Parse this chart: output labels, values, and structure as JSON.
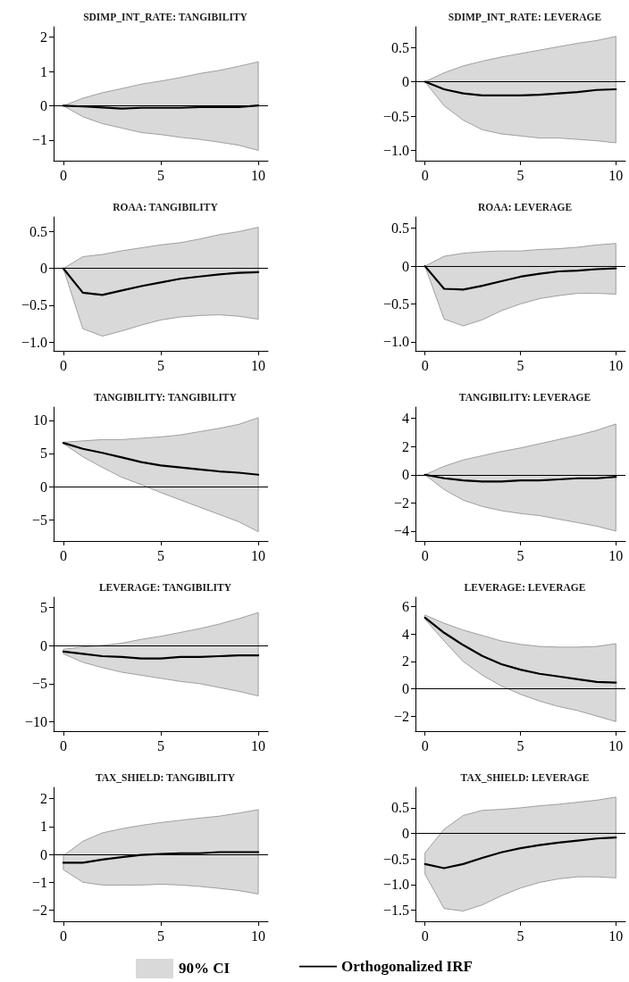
{
  "chart_data": [
    {
      "type": "line",
      "title": "SDIMP_INT_RATE: TANGIBILITY",
      "x": [
        0,
        1,
        2,
        3,
        4,
        5,
        6,
        7,
        8,
        9,
        10
      ],
      "xlim": [
        -0.5,
        10.5
      ],
      "xticks": [
        0,
        5,
        10
      ],
      "ylim": [
        -1.6,
        2.3
      ],
      "yticks": [
        {
          "value": -1,
          "label": "−1"
        },
        0,
        1,
        2
      ],
      "marker": "none",
      "ref_lines": [
        {
          "axis": "y",
          "value": 0,
          "color": "#000000"
        }
      ],
      "series": [
        {
          "color": "#000000",
          "values": [
            0,
            -0.02,
            -0.05,
            -0.08,
            -0.06,
            -0.06,
            -0.06,
            -0.04,
            -0.04,
            -0.04,
            0.01
          ],
          "lower": [
            0,
            -0.32,
            -0.52,
            -0.65,
            -0.78,
            -0.84,
            -0.92,
            -0.98,
            -1.06,
            -1.15,
            -1.3
          ],
          "upper": [
            0,
            0.22,
            0.38,
            0.5,
            0.63,
            0.72,
            0.82,
            0.94,
            1.03,
            1.15,
            1.28
          ]
        }
      ]
    },
    {
      "type": "line",
      "title": "SDIMP_INT_RATE: LEVERAGE",
      "x": [
        0,
        1,
        2,
        3,
        4,
        5,
        6,
        7,
        8,
        9,
        10
      ],
      "xlim": [
        -0.5,
        10.5
      ],
      "xticks": [
        0,
        5,
        10
      ],
      "ylim": [
        -1.15,
        0.8
      ],
      "yticks": [
        {
          "value": -1,
          "label": "−1.0"
        },
        {
          "value": -0.5,
          "label": "−0.5"
        },
        0,
        0.5
      ],
      "marker": "none",
      "ref_lines": [
        {
          "axis": "y",
          "value": 0,
          "color": "#000000"
        }
      ],
      "series": [
        {
          "color": "#000000",
          "values": [
            0,
            -0.11,
            -0.17,
            -0.2,
            -0.2,
            -0.2,
            -0.19,
            -0.17,
            -0.15,
            -0.12,
            -0.11
          ],
          "lower": [
            0,
            -0.35,
            -0.56,
            -0.7,
            -0.76,
            -0.79,
            -0.82,
            -0.82,
            -0.84,
            -0.86,
            -0.89
          ],
          "upper": [
            0,
            0.13,
            0.23,
            0.3,
            0.36,
            0.41,
            0.46,
            0.51,
            0.56,
            0.6,
            0.66
          ]
        }
      ]
    },
    {
      "type": "line",
      "title": "ROAA: TANGIBILITY",
      "x": [
        0,
        1,
        2,
        3,
        4,
        5,
        6,
        7,
        8,
        9,
        10
      ],
      "xlim": [
        -0.5,
        10.5
      ],
      "xticks": [
        0,
        5,
        10
      ],
      "ylim": [
        -1.12,
        0.7
      ],
      "yticks": [
        {
          "value": -1,
          "label": "−1.0"
        },
        {
          "value": -0.5,
          "label": "−0.5"
        },
        0,
        0.5
      ],
      "marker": "none",
      "ref_lines": [
        {
          "axis": "y",
          "value": 0,
          "color": "#000000"
        }
      ],
      "series": [
        {
          "color": "#000000",
          "values": [
            0,
            -0.33,
            -0.36,
            -0.3,
            -0.24,
            -0.19,
            -0.14,
            -0.11,
            -0.08,
            -0.06,
            -0.05
          ],
          "lower": [
            0,
            -0.82,
            -0.92,
            -0.85,
            -0.77,
            -0.7,
            -0.66,
            -0.64,
            -0.63,
            -0.65,
            -0.69
          ],
          "upper": [
            0,
            0.16,
            0.19,
            0.24,
            0.28,
            0.32,
            0.35,
            0.4,
            0.46,
            0.5,
            0.56
          ]
        }
      ]
    },
    {
      "type": "line",
      "title": "ROAA: LEVERAGE",
      "x": [
        0,
        1,
        2,
        3,
        4,
        5,
        6,
        7,
        8,
        9,
        10
      ],
      "xlim": [
        -0.5,
        10.5
      ],
      "xticks": [
        0,
        5,
        10
      ],
      "ylim": [
        -1.12,
        0.65
      ],
      "yticks": [
        {
          "value": -1,
          "label": "−1.0"
        },
        {
          "value": -0.5,
          "label": "−0.5"
        },
        0,
        0.5
      ],
      "marker": "none",
      "ref_lines": [
        {
          "axis": "y",
          "value": 0,
          "color": "#000000"
        }
      ],
      "series": [
        {
          "color": "#000000",
          "values": [
            0,
            -0.3,
            -0.31,
            -0.26,
            -0.2,
            -0.14,
            -0.1,
            -0.07,
            -0.06,
            -0.04,
            -0.03
          ],
          "lower": [
            0,
            -0.7,
            -0.79,
            -0.71,
            -0.59,
            -0.5,
            -0.43,
            -0.39,
            -0.36,
            -0.36,
            -0.37
          ],
          "upper": [
            0,
            0.13,
            0.17,
            0.19,
            0.2,
            0.2,
            0.22,
            0.23,
            0.25,
            0.28,
            0.3
          ]
        }
      ]
    },
    {
      "type": "line",
      "title": "TANGIBILITY: TANGIBILITY",
      "x": [
        0,
        1,
        2,
        3,
        4,
        5,
        6,
        7,
        8,
        9,
        10
      ],
      "xlim": [
        -0.5,
        10.5
      ],
      "xticks": [
        0,
        5,
        10
      ],
      "ylim": [
        -8.2,
        12
      ],
      "yticks": [
        {
          "value": -5,
          "label": "−5"
        },
        0,
        5,
        10
      ],
      "marker": "none",
      "ref_lines": [
        {
          "axis": "y",
          "value": 0,
          "color": "#000000"
        }
      ],
      "series": [
        {
          "color": "#000000",
          "values": [
            6.6,
            5.7,
            5.1,
            4.4,
            3.7,
            3.2,
            2.9,
            2.6,
            2.3,
            2.1,
            1.8
          ],
          "lower": [
            6.5,
            4.5,
            2.9,
            1.4,
            0.3,
            -0.9,
            -2,
            -3.1,
            -4.2,
            -5.3,
            -6.8
          ],
          "upper": [
            6.7,
            6.9,
            7.1,
            7.1,
            7.3,
            7.5,
            7.8,
            8.3,
            8.8,
            9.4,
            10.4
          ]
        }
      ]
    },
    {
      "type": "line",
      "title": "TANGIBILITY: LEVERAGE",
      "x": [
        0,
        1,
        2,
        3,
        4,
        5,
        6,
        7,
        8,
        9,
        10
      ],
      "xlim": [
        -0.5,
        10.5
      ],
      "xticks": [
        0,
        5,
        10
      ],
      "ylim": [
        -4.7,
        4.8
      ],
      "yticks": [
        {
          "value": -4,
          "label": "−4"
        },
        {
          "value": -2,
          "label": "−2"
        },
        0,
        2,
        4
      ],
      "marker": "none",
      "ref_lines": [
        {
          "axis": "y",
          "value": 0,
          "color": "#000000"
        }
      ],
      "series": [
        {
          "color": "#000000",
          "values": [
            0,
            -0.25,
            -0.4,
            -0.48,
            -0.48,
            -0.4,
            -0.4,
            -0.33,
            -0.25,
            -0.25,
            -0.15
          ],
          "lower": [
            0,
            -1.05,
            -1.8,
            -2.25,
            -2.55,
            -2.75,
            -2.9,
            -3.15,
            -3.4,
            -3.65,
            -4
          ],
          "upper": [
            0,
            0.6,
            1.05,
            1.35,
            1.65,
            1.9,
            2.2,
            2.5,
            2.8,
            3.15,
            3.6
          ]
        }
      ]
    },
    {
      "type": "line",
      "title": "LEVERAGE: TANGIBILITY",
      "x": [
        0,
        1,
        2,
        3,
        4,
        5,
        6,
        7,
        8,
        9,
        10
      ],
      "xlim": [
        -0.5,
        10.5
      ],
      "xticks": [
        0,
        5,
        10
      ],
      "ylim": [
        -11.2,
        6.3
      ],
      "yticks": [
        {
          "value": -10,
          "label": "−10"
        },
        {
          "value": -5,
          "label": "−5"
        },
        0,
        5
      ],
      "marker": "none",
      "ref_lines": [
        {
          "axis": "y",
          "value": 0,
          "color": "#000000"
        }
      ],
      "series": [
        {
          "color": "#000000",
          "values": [
            -0.8,
            -1.1,
            -1.4,
            -1.5,
            -1.7,
            -1.7,
            -1.5,
            -1.5,
            -1.4,
            -1.3,
            -1.3
          ],
          "lower": [
            -1.1,
            -2.2,
            -2.9,
            -3.5,
            -3.9,
            -4.3,
            -4.7,
            -5,
            -5.5,
            -6,
            -6.6
          ],
          "upper": [
            -0.5,
            -0.2,
            0,
            0.3,
            0.8,
            1.2,
            1.7,
            2.2,
            2.8,
            3.5,
            4.3
          ]
        }
      ]
    },
    {
      "type": "line",
      "title": "LEVERAGE: LEVERAGE",
      "x": [
        0,
        1,
        2,
        3,
        4,
        5,
        6,
        7,
        8,
        9,
        10
      ],
      "xlim": [
        -0.5,
        10.5
      ],
      "xticks": [
        0,
        5,
        10
      ],
      "ylim": [
        -3.1,
        6.7
      ],
      "yticks": [
        {
          "value": -2,
          "label": "−2"
        },
        0,
        2,
        4,
        6
      ],
      "marker": "none",
      "ref_lines": [
        {
          "axis": "y",
          "value": 0,
          "color": "#000000"
        }
      ],
      "series": [
        {
          "color": "#000000",
          "values": [
            5.2,
            4.1,
            3.2,
            2.4,
            1.8,
            1.4,
            1.1,
            0.9,
            0.7,
            0.5,
            0.45
          ],
          "lower": [
            5.1,
            3.5,
            2,
            1,
            0.2,
            -0.4,
            -0.9,
            -1.3,
            -1.6,
            -2,
            -2.4
          ],
          "upper": [
            5.4,
            4.8,
            4.3,
            3.9,
            3.5,
            3.25,
            3.1,
            3.05,
            3.05,
            3.1,
            3.3
          ]
        }
      ]
    },
    {
      "type": "line",
      "title": "TAX_SHIELD: TANGIBILITY",
      "x": [
        0,
        1,
        2,
        3,
        4,
        5,
        6,
        7,
        8,
        9,
        10
      ],
      "xlim": [
        -0.5,
        10.5
      ],
      "xticks": [
        0,
        5,
        10
      ],
      "ylim": [
        -2.4,
        2.4
      ],
      "yticks": [
        {
          "value": -2,
          "label": "−2"
        },
        {
          "value": -1,
          "label": "−1"
        },
        0,
        1,
        2
      ],
      "marker": "none",
      "ref_lines": [
        {
          "axis": "y",
          "value": 0,
          "color": "#000000"
        }
      ],
      "series": [
        {
          "color": "#000000",
          "values": [
            -0.3,
            -0.3,
            -0.19,
            -0.1,
            -0.02,
            0.01,
            0.04,
            0.04,
            0.08,
            0.08,
            0.08
          ],
          "lower": [
            -0.55,
            -1,
            -1.1,
            -1.1,
            -1.1,
            -1.07,
            -1.1,
            -1.15,
            -1.22,
            -1.3,
            -1.42
          ],
          "upper": [
            -0.05,
            0.47,
            0.77,
            0.92,
            1.04,
            1.14,
            1.22,
            1.3,
            1.37,
            1.48,
            1.6
          ]
        }
      ]
    },
    {
      "type": "line",
      "title": "TAX_SHIELD: LEVERAGE",
      "x": [
        0,
        1,
        2,
        3,
        4,
        5,
        6,
        7,
        8,
        9,
        10
      ],
      "xlim": [
        -0.5,
        10.5
      ],
      "xticks": [
        0,
        5,
        10
      ],
      "ylim": [
        -1.72,
        0.9
      ],
      "yticks": [
        {
          "value": -1.5,
          "label": "−1.5"
        },
        {
          "value": -1,
          "label": "−1.0"
        },
        {
          "value": -0.5,
          "label": "−0.5"
        },
        0,
        0.5
      ],
      "marker": "none",
      "legend": "bottom",
      "annotations": [
        "90% CI"
      ],
      "ref_lines": [
        {
          "axis": "y",
          "value": 0,
          "color": "#000000"
        }
      ],
      "series": [
        {
          "name": "Orthogonalized IRF",
          "color": "#000000",
          "values": [
            -0.6,
            -0.68,
            -0.6,
            -0.48,
            -0.37,
            -0.29,
            -0.23,
            -0.18,
            -0.14,
            -0.1,
            -0.08
          ],
          "lower": [
            -0.8,
            -1.47,
            -1.52,
            -1.4,
            -1.22,
            -1.07,
            -0.96,
            -0.89,
            -0.85,
            -0.85,
            -0.87
          ],
          "upper": [
            -0.38,
            0.08,
            0.35,
            0.45,
            0.47,
            0.5,
            0.54,
            0.57,
            0.61,
            0.65,
            0.71
          ]
        }
      ]
    }
  ]
}
